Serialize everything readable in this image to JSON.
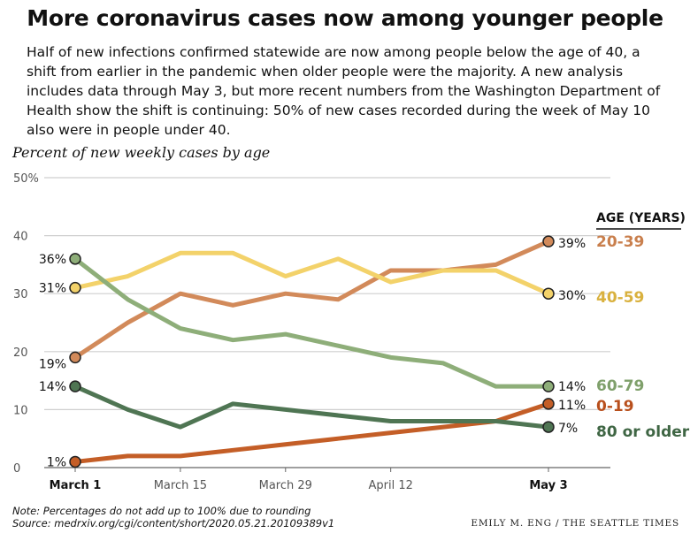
{
  "title": "More coronavirus cases now among younger people",
  "subtitle": "Half of new infections confirmed statewide are now among people below the age of 40, a shift from earlier in the pandemic when older people were the majority. A new analysis includes data through May 3, but more recent numbers from the Washington Department of Health show the shift is continuing: 50% of new cases recorded during the week of May 10 also were in people under 40.",
  "footer": {
    "note": "Note: Percentages do not add up to 100% due to rounding",
    "source": "Source: medrxiv.org/cgi/content/short/2020.05.21.20109389v1",
    "credit": "EMILY M. ENG / THE SEATTLE TIMES"
  },
  "chart_data": {
    "type": "line",
    "ylabel": "Percent of new weekly cases by age",
    "ylim": [
      0,
      50
    ],
    "yticks": [
      0,
      10,
      20,
      30,
      40,
      50
    ],
    "ytick_labels": [
      "0",
      "10",
      "20",
      "30",
      "40",
      "50%"
    ],
    "x": [
      "2020-03-01",
      "2020-03-08",
      "2020-03-15",
      "2020-03-22",
      "2020-03-29",
      "2020-04-05",
      "2020-04-12",
      "2020-04-19",
      "2020-04-26",
      "2020-05-03"
    ],
    "xticks": [
      {
        "label": "March 1",
        "index": 0,
        "bold": true
      },
      {
        "label": "March 15",
        "index": 2,
        "bold": false
      },
      {
        "label": "March 29",
        "index": 4,
        "bold": false
      },
      {
        "label": "April 12",
        "index": 6,
        "bold": false
      },
      {
        "label": "May 3",
        "index": 9,
        "bold": true
      }
    ],
    "legend_title": "AGE (YEARS)",
    "grid": true,
    "series": [
      {
        "name": "20-39",
        "color": "#D28A5A",
        "values": [
          19,
          25,
          30,
          28,
          30,
          29,
          34,
          34,
          35,
          39
        ],
        "start_label": "19%",
        "end_label": "39%"
      },
      {
        "name": "40-59",
        "color": "#F3D26A",
        "values": [
          31,
          33,
          37,
          37,
          33,
          36,
          32,
          34,
          34,
          30
        ],
        "start_label": "31%",
        "end_label": "30%"
      },
      {
        "name": "60-79",
        "color": "#8EAE79",
        "values": [
          36,
          29,
          24,
          22,
          23,
          21,
          19,
          18,
          14,
          14
        ],
        "start_label": "36%",
        "end_label": "14%"
      },
      {
        "name": "0-19",
        "color": "#C45E27",
        "values": [
          1,
          2,
          2,
          3,
          4,
          5,
          6,
          7,
          8,
          11
        ],
        "start_label": "1%",
        "end_label": "11%"
      },
      {
        "name": "80 or older",
        "color": "#4F7553",
        "values": [
          14,
          10,
          7,
          11,
          10,
          9,
          8,
          8,
          8,
          7
        ],
        "start_label": "14%",
        "end_label": "7%"
      }
    ]
  }
}
